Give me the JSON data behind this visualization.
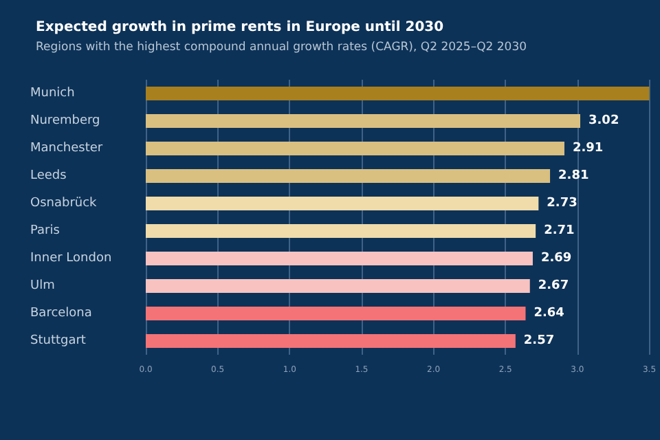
{
  "chart_data": {
    "type": "bar",
    "orientation": "horizontal",
    "title": "Expected growth in prime rents in Europe until 2030",
    "subtitle": "Regions with the highest compound annual growth rates (CAGR), Q2 2025–Q2 2030",
    "categories": [
      "Munich",
      "Nuremberg",
      "Manchester",
      "Leeds",
      "Osnabrück",
      "Paris",
      "Inner London",
      "Ulm",
      "Barcelona",
      "Stuttgart"
    ],
    "values": [
      3.5,
      3.02,
      2.91,
      2.81,
      2.73,
      2.71,
      2.69,
      2.67,
      2.64,
      2.57
    ],
    "colors": [
      "#a8801e",
      "#d9bf80",
      "#d9bf80",
      "#d9bf80",
      "#efdcaa",
      "#efdcaa",
      "#f7c2c0",
      "#f7c2c0",
      "#f47377",
      "#f47377"
    ],
    "value_labels": [
      null,
      "3.02",
      "2.91",
      "2.81",
      "2.73",
      "2.71",
      "2.69",
      "2.67",
      "2.64",
      "2.57"
    ],
    "xlim": [
      0,
      3.5
    ],
    "xticks": [
      {
        "value": 0,
        "label": "0.0"
      },
      {
        "value": 0.5,
        "label": "0.5"
      },
      {
        "value": 1,
        "label": "1.0"
      },
      {
        "value": 1.5,
        "label": "1.5"
      },
      {
        "value": 2,
        "label": "2.0"
      },
      {
        "value": 2.5,
        "label": "2.5"
      },
      {
        "value": 3,
        "label": "3.0"
      },
      {
        "value": 3.5,
        "label": "3.5"
      }
    ],
    "grid": "x"
  }
}
